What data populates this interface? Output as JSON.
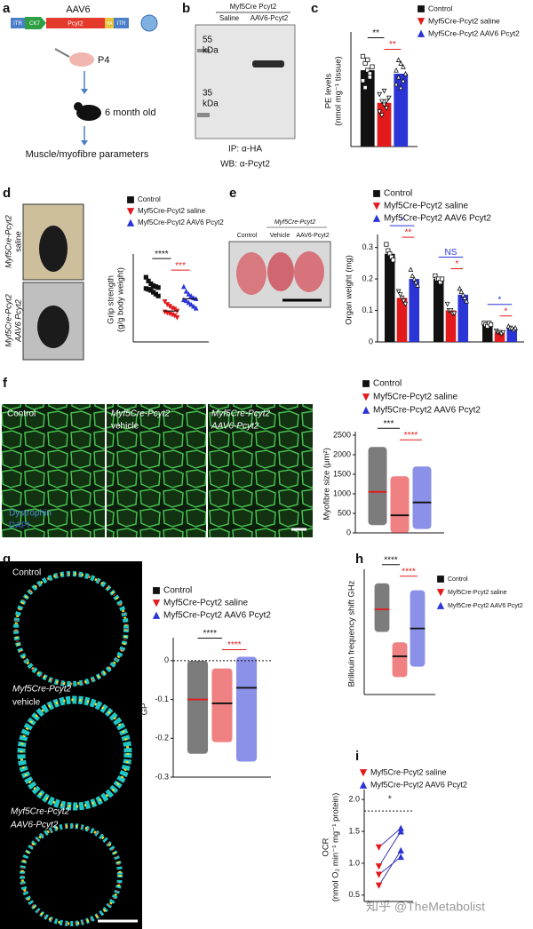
{
  "panels": {
    "a": {
      "label": "a",
      "vector": "AAV6",
      "construct": [
        "ITR",
        "CK7",
        "Pcyt2",
        "HA",
        "ITR"
      ],
      "age": "P4",
      "timepoint": "6 month old",
      "readout": "Muscle/myofibre parameters"
    },
    "b": {
      "label": "b",
      "genotype": "Myf5Cre Pcyt2",
      "lanes": [
        "Saline",
        "AAV6-Pcyt2"
      ],
      "markers": [
        [
          "55",
          "kDa"
        ],
        [
          "35",
          "kDa"
        ]
      ],
      "ip": "IP: α-HA",
      "wb": "WB: α-Pcyt2"
    },
    "d": {
      "images": [
        [
          "Myf5Cre-Pcyt2",
          "saline"
        ],
        [
          "Myf5Cre-Pcyt2",
          "AAV6 Pcyt2"
        ]
      ]
    },
    "e": {
      "genotype": "Myf5Cre-Pcyt2",
      "lanes": [
        "Control",
        "Vehicle",
        "AAV6-Pcyt2"
      ]
    },
    "f": {
      "images": [
        [
          "Control"
        ],
        [
          "Myf5Cre-Pcyt2",
          "vehicle"
        ],
        [
          "Myf5Cre-Pcyt2",
          "AAV6-Pcyt2"
        ]
      ],
      "stains": [
        "Dystrophin",
        "DAPI"
      ]
    },
    "g": {
      "images": [
        [
          "Control"
        ],
        [
          "Myf5Cre-Pcyt2",
          "vehicle"
        ],
        [
          "Myf5Cre-Pcyt2",
          "AAV6-Pcyt2"
        ]
      ]
    },
    "watermark": "知乎 @TheMetabolist"
  },
  "chart_data": [
    {
      "type": "bar",
      "panel": "c",
      "ylabel": [
        "PE levels",
        "(nmol mg⁻¹ tissue)"
      ],
      "categories": [
        null
      ],
      "ylim": [
        0,
        32
      ],
      "series": [
        {
          "name": "Control",
          "color": "#111111",
          "marker": "square",
          "values": [
            22
          ],
          "points": [
            [
              26,
              24,
              22,
              21,
              23,
              19,
              17,
              25,
              20
            ]
          ]
        },
        {
          "name": "Myf5Cre-Pcyt2 saline",
          "color": "#e31a1c",
          "marker": "triangle-down",
          "values": [
            12.6
          ],
          "points": [
            [
              15,
              13,
              12,
              11,
              14,
              10,
              9,
              16,
              13
            ]
          ]
        },
        {
          "name": "Myf5Cre-Pcyt2 AAV6 Pcyt2",
          "color": "#2b35d6",
          "marker": "triangle-up",
          "values": [
            21
          ],
          "points": [
            [
              22,
              20,
              24,
              19,
              21,
              18,
              25,
              17,
              23
            ]
          ]
        }
      ],
      "annotations": [
        {
          "text": "**",
          "color": "#111111",
          "group": 0,
          "series": [
            0,
            1
          ]
        },
        {
          "text": "**",
          "color": "#e31a1c",
          "group": 0,
          "series": [
            1,
            2
          ]
        }
      ]
    },
    {
      "type": "dot",
      "panel": "d",
      "ylabel": [
        "Grip strength",
        "(g/g body weight)"
      ],
      "categories": [
        null
      ],
      "ylim": [
        0,
        9
      ],
      "series": [
        {
          "name": "Control",
          "color": "#111111",
          "marker": "square",
          "values": [
            5.8
          ],
          "points": [
            [
              6.9,
              6.5,
              6.2,
              6.0,
              5.9,
              5.8,
              5.7,
              5.6,
              5.5,
              5.3,
              5.1,
              4.9
            ]
          ]
        },
        {
          "name": "Myf5Cre-Pcyt2 saline",
          "color": "#e31a1c",
          "marker": "triangle-down",
          "values": [
            3.3
          ],
          "points": [
            [
              4.3,
              4.0,
              3.8,
              3.6,
              3.5,
              3.3,
              3.2,
              3.1,
              3.0,
              2.9,
              2.8,
              2.6
            ]
          ]
        },
        {
          "name": "Myf5Cre-Pcyt2 AAV6 Pcyt2",
          "color": "#2b35d6",
          "marker": "triangle-up",
          "values": [
            4.6
          ],
          "points": [
            [
              5.9,
              5.4,
              5.1,
              4.9,
              4.7,
              4.6,
              4.5,
              4.4,
              4.2,
              4.0,
              3.8,
              3.6
            ]
          ]
        }
      ],
      "annotations": [
        {
          "text": "****",
          "color": "#111111",
          "group": 0,
          "series": [
            0,
            1
          ]
        },
        {
          "text": "***",
          "color": "#e31a1c",
          "group": 0,
          "series": [
            1,
            2
          ]
        }
      ]
    },
    {
      "type": "bar",
      "panel": "e",
      "ylabel": "Organ weight (mg)",
      "categories": [
        null,
        null,
        null
      ],
      "ylim": [
        0,
        0.33
      ],
      "yticks": [
        0,
        0.1,
        0.2,
        0.3
      ],
      "series": [
        {
          "name": "Control",
          "color": "#111111",
          "marker": "square",
          "values": [
            0.28,
            0.2,
            0.055
          ],
          "points": [
            [
              0.31,
              0.29,
              0.28,
              0.27,
              0.26
            ],
            [
              0.21,
              0.2,
              0.2,
              0.19,
              0.2
            ],
            [
              0.06,
              0.055,
              0.05,
              0.06,
              0.055
            ]
          ]
        },
        {
          "name": "Myf5Cre-Pcyt2 saline",
          "color": "#e31a1c",
          "marker": "triangle-down",
          "values": [
            0.14,
            0.1,
            0.03
          ],
          "points": [
            [
              0.16,
              0.15,
              0.14,
              0.13,
              0.12
            ],
            [
              0.12,
              0.1,
              0.1,
              0.09,
              0.09
            ],
            [
              0.035,
              0.03,
              0.03,
              0.025,
              0.03
            ]
          ]
        },
        {
          "name": "Myf5Cre-Pcyt2 AAV6 Pcyt2",
          "color": "#2b35d6",
          "marker": "triangle-up",
          "values": [
            0.2,
            0.15,
            0.045
          ],
          "points": [
            [
              0.23,
              0.21,
              0.2,
              0.19,
              0.18
            ],
            [
              0.17,
              0.16,
              0.15,
              0.14,
              0.13
            ],
            [
              0.05,
              0.045,
              0.045,
              0.04,
              0.045
            ]
          ]
        }
      ],
      "annotations": [
        {
          "text": "*",
          "color": "#2b35d6",
          "group": 0,
          "series": [
            0,
            2
          ]
        },
        {
          "text": "**",
          "color": "#e31a1c",
          "group": 0,
          "series": [
            1,
            2
          ]
        },
        {
          "text": "NS",
          "color": "#2b35d6",
          "group": 1,
          "series": [
            0,
            2
          ]
        },
        {
          "text": "*",
          "color": "#e31a1c",
          "group": 1,
          "series": [
            1,
            2
          ]
        },
        {
          "text": "*",
          "color": "#2b35d6",
          "group": 2,
          "series": [
            0,
            2
          ]
        },
        {
          "text": "*",
          "color": "#e31a1c",
          "group": 2,
          "series": [
            1,
            2
          ]
        }
      ]
    },
    {
      "type": "range",
      "panel": "f",
      "ylabel": "Myofibre size (μm²)",
      "categories": [
        null
      ],
      "ylim": [
        0,
        2500
      ],
      "yticks": [
        0,
        500,
        1000,
        1500,
        2000,
        2500
      ],
      "series": [
        {
          "name": "Control",
          "color": "#111111",
          "marker": "square",
          "values": [
            1050
          ],
          "min": [
            200
          ],
          "max": [
            2200
          ]
        },
        {
          "name": "Myf5Cre-Pcyt2 saline",
          "color": "#e31a1c",
          "marker": "triangle-down",
          "values": [
            450
          ],
          "min": [
            0
          ],
          "max": [
            1450
          ]
        },
        {
          "name": "Myf5Cre-Pcyt2 AAV6 Pcyt2",
          "color": "#2b35d6",
          "marker": "triangle-up",
          "values": [
            780
          ],
          "min": [
            100
          ],
          "max": [
            1700
          ]
        }
      ],
      "annotations": [
        {
          "text": "***",
          "color": "#111111",
          "group": 0,
          "series": [
            0,
            1
          ]
        },
        {
          "text": "****",
          "color": "#e31a1c",
          "group": 0,
          "series": [
            1,
            2
          ]
        }
      ]
    },
    {
      "type": "range",
      "panel": "g",
      "ylabel": "GP",
      "categories": [
        null
      ],
      "ylim": [
        -0.3,
        0.05
      ],
      "yticks": [
        0,
        -0.1,
        -0.2,
        -0.3
      ],
      "reference_line": 0,
      "series": [
        {
          "name": "Control",
          "color": "#111111",
          "marker": "square",
          "values": [
            -0.1
          ],
          "min": [
            -0.24
          ],
          "max": [
            0
          ]
        },
        {
          "name": "Myf5Cre-Pcyt2 saline",
          "color": "#e31a1c",
          "marker": "triangle-down",
          "values": [
            -0.11
          ],
          "min": [
            -0.21
          ],
          "max": [
            -0.02
          ]
        },
        {
          "name": "Myf5Cre-Pcyt2 AAV6 Pcyt2",
          "color": "#2b35d6",
          "marker": "triangle-up",
          "values": [
            -0.07
          ],
          "min": [
            -0.26
          ],
          "max": [
            0.01
          ]
        }
      ],
      "annotations": [
        {
          "text": "****",
          "color": "#111111",
          "group": 0,
          "series": [
            0,
            1
          ]
        },
        {
          "text": "****",
          "color": "#e31a1c",
          "group": 0,
          "series": [
            1,
            2
          ]
        }
      ]
    },
    {
      "type": "range",
      "panel": "h",
      "ylabel": "Brillouin frequency shift GHz",
      "categories": [
        null
      ],
      "ylim": [
        9.5,
        13
      ],
      "series": [
        {
          "name": "Control",
          "color": "#111111",
          "marker": "square",
          "values": [
            11.95
          ],
          "min": [
            11.3
          ],
          "max": [
            12.7
          ]
        },
        {
          "name": "Myf5Cre-Pcyt2 saline",
          "color": "#e31a1c",
          "marker": "triangle-down",
          "values": [
            10.6
          ],
          "min": [
            10.0
          ],
          "max": [
            11.0
          ]
        },
        {
          "name": "Myf5Cre-Pcyt2 AAV6 Pcyt2",
          "color": "#2b35d6",
          "marker": "triangle-up",
          "values": [
            11.4
          ],
          "min": [
            10.3
          ],
          "max": [
            12.5
          ]
        }
      ],
      "annotations": [
        {
          "text": "****",
          "color": "#111111",
          "group": 0,
          "series": [
            0,
            1
          ]
        },
        {
          "text": "****",
          "color": "#e31a1c",
          "group": 0,
          "series": [
            1,
            2
          ]
        }
      ]
    },
    {
      "type": "paired",
      "panel": "i",
      "ylabel": [
        "OCR",
        "(nmol O₂ min⁻¹ mg⁻¹ protein)"
      ],
      "ylim": [
        0.4,
        2.1
      ],
      "yticks": [
        0.5,
        {
          "value": 1,
          "label": "1.0"
        },
        1.5,
        {
          "value": 2,
          "label": "2.0"
        }
      ],
      "reference_line": 1.82,
      "series": [
        {
          "name": "Myf5Cre-Pcyt2 saline",
          "color": "#e31a1c",
          "marker": "triangle-down",
          "values": [
            1.25,
            0.95,
            0.82,
            0.65
          ]
        },
        {
          "name": "Myf5Cre-Pcyt2 AAV6 Pcyt2",
          "color": "#2b35d6",
          "marker": "triangle-up",
          "values": [
            1.55,
            1.5,
            1.1,
            1.2
          ]
        }
      ],
      "annotations": [
        {
          "text": "*",
          "color": "#111111",
          "group": 0,
          "series": [
            0,
            1
          ]
        }
      ]
    }
  ]
}
